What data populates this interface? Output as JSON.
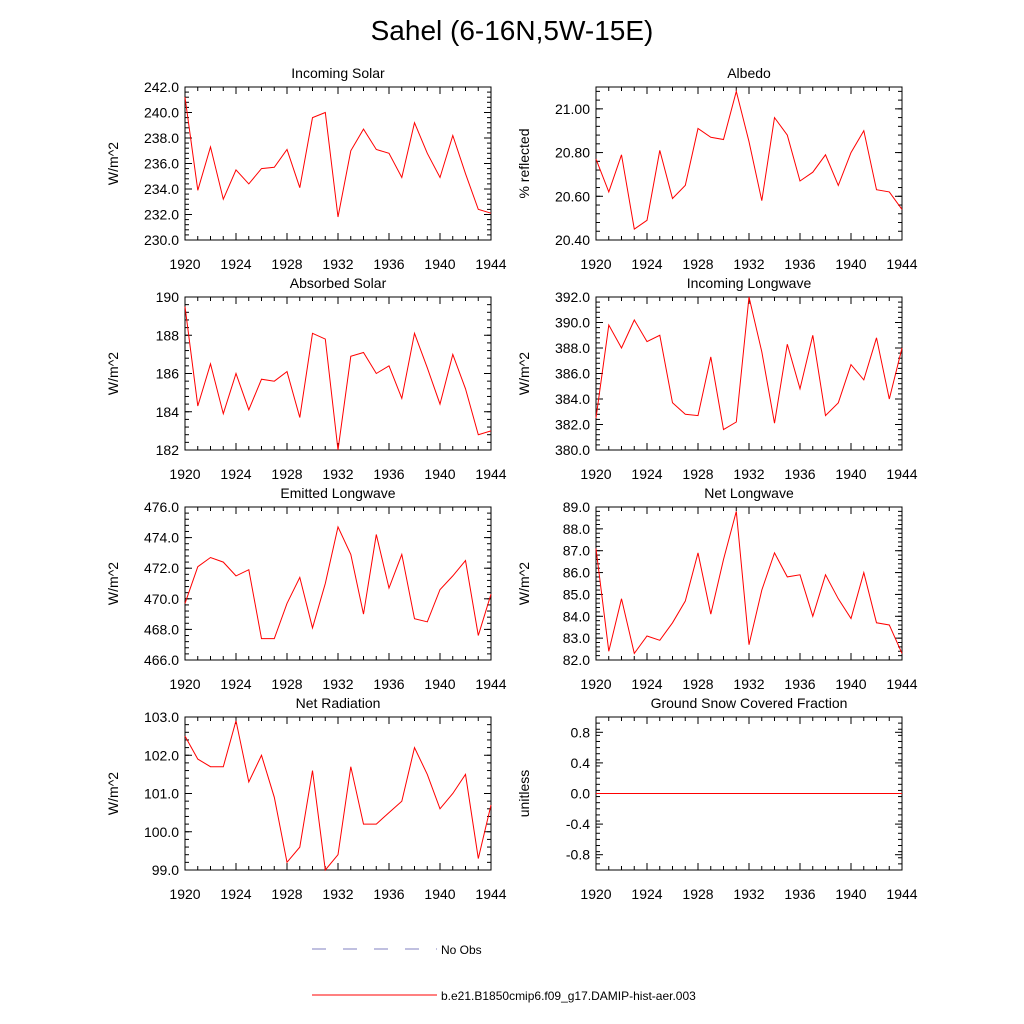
{
  "title": "Sahel (6-16N,5W-15E)",
  "colors": {
    "series": "#ff0000",
    "obs": "#8080c0",
    "axis": "#000000"
  },
  "legend": {
    "obs_label": "No Obs",
    "model_label": "b.e21.B1850cmip6.f09_g17.DAMIP-hist-aer.003"
  },
  "chart_data": [
    {
      "type": "line",
      "title": "Incoming Solar",
      "ylabel": "W/m^2",
      "xlim": [
        1920,
        1944
      ],
      "ylim": [
        230,
        242
      ],
      "yticks": [
        "230.0",
        "232.0",
        "234.0",
        "236.0",
        "238.0",
        "240.0",
        "242.0"
      ],
      "xticks": [
        "1920",
        "1924",
        "1928",
        "1932",
        "1936",
        "1940",
        "1944"
      ],
      "x": [
        1920,
        1921,
        1922,
        1923,
        1924,
        1925,
        1926,
        1927,
        1928,
        1929,
        1930,
        1931,
        1932,
        1933,
        1934,
        1935,
        1936,
        1937,
        1938,
        1939,
        1940,
        1941,
        1942,
        1943,
        1944
      ],
      "values": [
        241.2,
        233.9,
        237.3,
        233.2,
        235.5,
        234.4,
        235.6,
        235.7,
        237.1,
        234.1,
        239.6,
        240.0,
        231.8,
        237.0,
        238.7,
        237.1,
        236.8,
        234.9,
        239.2,
        236.8,
        234.9,
        238.2,
        235.2,
        232.4,
        232.1
      ],
      "grid": false
    },
    {
      "type": "line",
      "title": "Albedo",
      "ylabel": "% reflected",
      "xlim": [
        1920,
        1944
      ],
      "ylim": [
        20.4,
        21.1
      ],
      "yticks": [
        "20.40",
        "20.60",
        "20.80",
        "21.00"
      ],
      "xticks": [
        "1920",
        "1924",
        "1928",
        "1932",
        "1936",
        "1940",
        "1944"
      ],
      "x": [
        1920,
        1921,
        1922,
        1923,
        1924,
        1925,
        1926,
        1927,
        1928,
        1929,
        1930,
        1931,
        1932,
        1933,
        1934,
        1935,
        1936,
        1937,
        1938,
        1939,
        1940,
        1941,
        1942,
        1943,
        1944
      ],
      "values": [
        20.77,
        20.62,
        20.79,
        20.45,
        20.49,
        20.81,
        20.59,
        20.65,
        20.91,
        20.87,
        20.86,
        21.08,
        20.85,
        20.58,
        20.96,
        20.88,
        20.67,
        20.71,
        20.79,
        20.65,
        20.8,
        20.9,
        20.63,
        20.62,
        20.54
      ],
      "grid": false
    },
    {
      "type": "line",
      "title": "Absorbed Solar",
      "ylabel": "W/m^2",
      "xlim": [
        1920,
        1944
      ],
      "ylim": [
        182,
        190
      ],
      "yticks": [
        "182",
        "184",
        "186",
        "188",
        "190"
      ],
      "xticks": [
        "1920",
        "1924",
        "1928",
        "1932",
        "1936",
        "1940",
        "1944"
      ],
      "x": [
        1920,
        1921,
        1922,
        1923,
        1924,
        1925,
        1926,
        1927,
        1928,
        1929,
        1930,
        1931,
        1932,
        1933,
        1934,
        1935,
        1936,
        1937,
        1938,
        1939,
        1940,
        1941,
        1942,
        1943,
        1944
      ],
      "values": [
        189.5,
        184.3,
        186.5,
        183.9,
        186.0,
        184.1,
        185.7,
        185.6,
        186.1,
        183.7,
        188.1,
        187.8,
        182.0,
        186.9,
        187.1,
        186.0,
        186.4,
        184.7,
        188.1,
        186.3,
        184.4,
        187.0,
        185.2,
        182.8,
        183.0
      ],
      "grid": false
    },
    {
      "type": "line",
      "title": "Incoming Longwave",
      "ylabel": "W/m^2",
      "xlim": [
        1920,
        1944
      ],
      "ylim": [
        380,
        392
      ],
      "yticks": [
        "380.0",
        "382.0",
        "384.0",
        "386.0",
        "388.0",
        "390.0",
        "392.0"
      ],
      "xticks": [
        "1920",
        "1924",
        "1928",
        "1932",
        "1936",
        "1940",
        "1944"
      ],
      "x": [
        1920,
        1921,
        1922,
        1923,
        1924,
        1925,
        1926,
        1927,
        1928,
        1929,
        1930,
        1931,
        1932,
        1933,
        1934,
        1935,
        1936,
        1937,
        1938,
        1939,
        1940,
        1941,
        1942,
        1943,
        1944
      ],
      "values": [
        382.5,
        389.8,
        388.0,
        390.2,
        388.5,
        389.0,
        383.7,
        382.8,
        382.7,
        387.3,
        381.6,
        382.2,
        392.0,
        387.7,
        382.1,
        388.3,
        384.8,
        389.0,
        382.7,
        383.7,
        386.7,
        385.5,
        388.8,
        384.0,
        388.0
      ],
      "grid": false
    },
    {
      "type": "line",
      "title": "Emitted Longwave",
      "ylabel": "W/m^2",
      "xlim": [
        1920,
        1944
      ],
      "ylim": [
        466,
        476
      ],
      "yticks": [
        "466.0",
        "468.0",
        "470.0",
        "472.0",
        "474.0",
        "476.0"
      ],
      "xticks": [
        "1920",
        "1924",
        "1928",
        "1932",
        "1936",
        "1940",
        "1944"
      ],
      "x": [
        1920,
        1921,
        1922,
        1923,
        1924,
        1925,
        1926,
        1927,
        1928,
        1929,
        1930,
        1931,
        1932,
        1933,
        1934,
        1935,
        1936,
        1937,
        1938,
        1939,
        1940,
        1941,
        1942,
        1943,
        1944
      ],
      "values": [
        469.7,
        472.1,
        472.7,
        472.4,
        471.5,
        471.9,
        467.4,
        467.4,
        469.7,
        471.4,
        468.1,
        471.0,
        474.7,
        472.9,
        469.0,
        474.2,
        470.7,
        472.9,
        468.7,
        468.5,
        470.6,
        471.5,
        472.5,
        467.6,
        470.3
      ],
      "grid": false
    },
    {
      "type": "line",
      "title": "Net Longwave",
      "ylabel": "W/m^2",
      "xlim": [
        1920,
        1944
      ],
      "ylim": [
        82,
        89
      ],
      "yticks": [
        "82.0",
        "83.0",
        "84.0",
        "85.0",
        "86.0",
        "87.0",
        "88.0",
        "89.0"
      ],
      "xticks": [
        "1920",
        "1924",
        "1928",
        "1932",
        "1936",
        "1940",
        "1944"
      ],
      "x": [
        1920,
        1921,
        1922,
        1923,
        1924,
        1925,
        1926,
        1927,
        1928,
        1929,
        1930,
        1931,
        1932,
        1933,
        1934,
        1935,
        1936,
        1937,
        1938,
        1939,
        1940,
        1941,
        1942,
        1943,
        1944
      ],
      "values": [
        87.1,
        82.4,
        84.8,
        82.3,
        83.1,
        82.9,
        83.7,
        84.7,
        86.9,
        84.1,
        86.6,
        88.8,
        82.7,
        85.2,
        86.9,
        85.8,
        85.9,
        84.0,
        85.9,
        84.8,
        83.9,
        86.0,
        83.7,
        83.6,
        82.3
      ],
      "grid": false
    },
    {
      "type": "line",
      "title": "Net Radiation",
      "ylabel": "W/m^2",
      "xlim": [
        1920,
        1944
      ],
      "ylim": [
        99,
        103
      ],
      "yticks": [
        "99.0",
        "100.0",
        "101.0",
        "102.0",
        "103.0"
      ],
      "xticks": [
        "1920",
        "1924",
        "1928",
        "1932",
        "1936",
        "1940",
        "1944"
      ],
      "x": [
        1920,
        1921,
        1922,
        1923,
        1924,
        1925,
        1926,
        1927,
        1928,
        1929,
        1930,
        1931,
        1932,
        1933,
        1934,
        1935,
        1936,
        1937,
        1938,
        1939,
        1940,
        1941,
        1942,
        1943,
        1944
      ],
      "values": [
        102.5,
        101.9,
        101.7,
        101.7,
        102.9,
        101.3,
        102.0,
        100.9,
        99.2,
        99.6,
        101.6,
        99.0,
        99.4,
        101.7,
        100.2,
        100.2,
        100.5,
        100.8,
        102.2,
        101.5,
        100.6,
        101.0,
        101.5,
        99.3,
        100.7
      ],
      "grid": false
    },
    {
      "type": "line",
      "title": "Ground Snow Covered Fraction",
      "ylabel": "unitless",
      "xlim": [
        1920,
        1944
      ],
      "ylim": [
        -1.0,
        1.0
      ],
      "yticks": [
        "-0.8",
        "-0.4",
        "0.0",
        "0.4",
        "0.8"
      ],
      "ytick_values": [
        -0.8,
        -0.4,
        0.0,
        0.4,
        0.8
      ],
      "xticks": [
        "1920",
        "1924",
        "1928",
        "1932",
        "1936",
        "1940",
        "1944"
      ],
      "x": [
        1920,
        1944
      ],
      "values": [
        0.0,
        0.0
      ],
      "grid": false
    }
  ]
}
